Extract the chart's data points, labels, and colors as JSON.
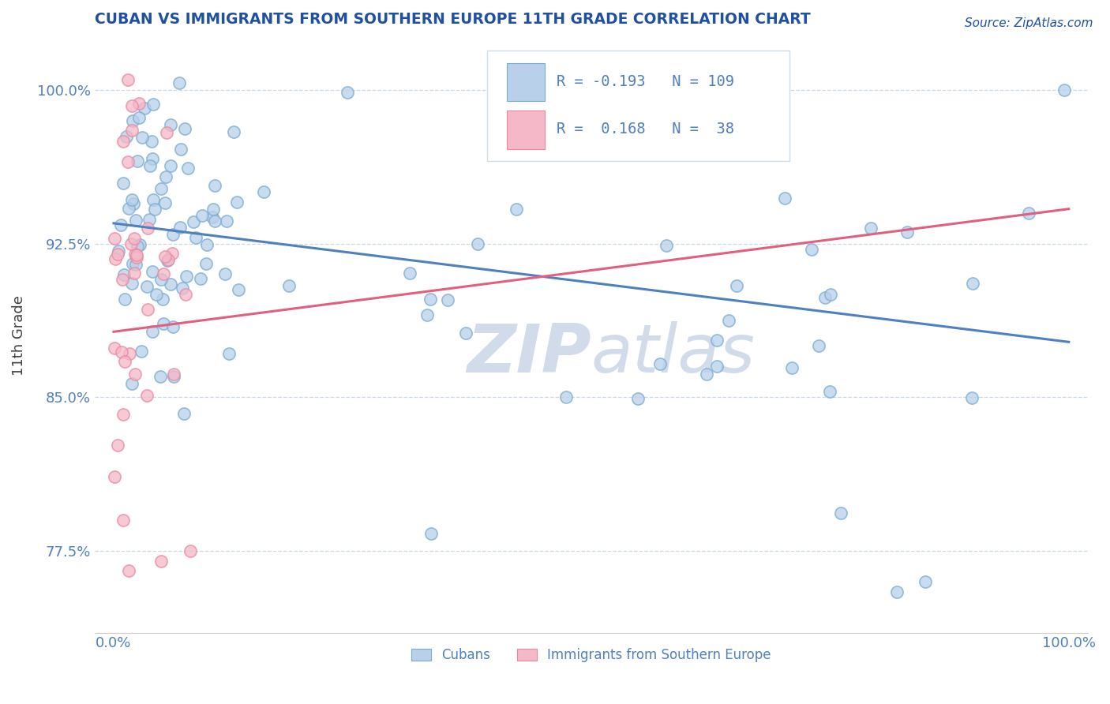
{
  "title": "CUBAN VS IMMIGRANTS FROM SOUTHERN EUROPE 11TH GRADE CORRELATION CHART",
  "source_text": "Source: ZipAtlas.com",
  "ylabel": "11th Grade",
  "xlim": [
    -0.02,
    1.02
  ],
  "ylim": [
    0.735,
    1.025
  ],
  "yticks": [
    0.775,
    0.85,
    0.925,
    1.0
  ],
  "ytick_labels": [
    "77.5%",
    "85.0%",
    "92.5%",
    "100.0%"
  ],
  "xticks": [
    0.0,
    1.0
  ],
  "xtick_labels": [
    "0.0%",
    "100.0%"
  ],
  "blue_R": -0.193,
  "blue_N": 109,
  "pink_R": 0.168,
  "pink_N": 38,
  "blue_fill_color": "#b8d0ea",
  "pink_fill_color": "#f5b8c8",
  "blue_edge_color": "#7aaad0",
  "pink_edge_color": "#e888a0",
  "blue_line_color": "#5080c0",
  "pink_line_color": "#e06080",
  "title_color": "#2050a0",
  "axis_label_color": "#404040",
  "tick_color": "#5080c0",
  "grid_color": "#c8d8e8",
  "legend_text_color": "#5080c0",
  "watermark_color": "#ccd8e8",
  "background_color": "#ffffff",
  "blue_line_y0": 0.935,
  "blue_line_y1": 0.877,
  "pink_line_y0": 0.882,
  "pink_line_y1": 0.942
}
